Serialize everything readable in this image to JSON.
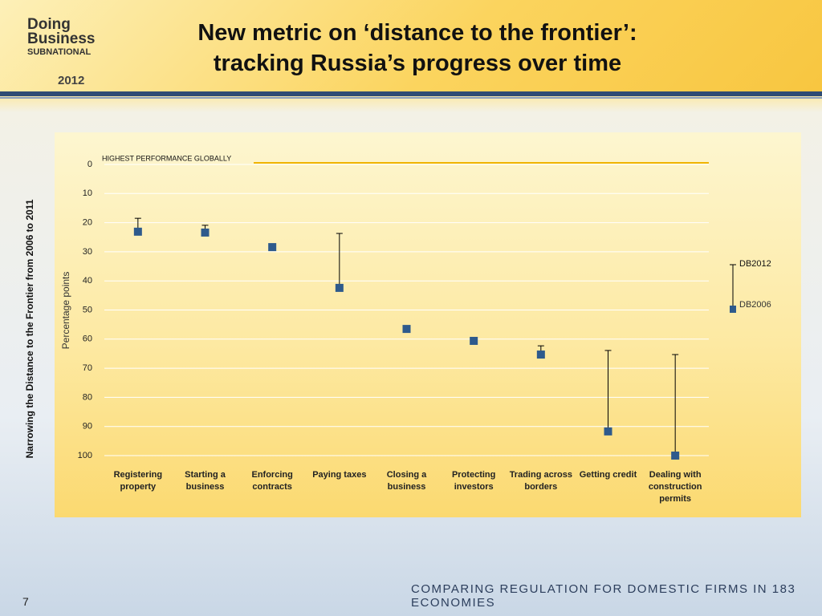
{
  "header": {
    "logo": [
      "Doing",
      "Business",
      "SUBNATIONAL",
      "2012"
    ],
    "title": [
      "New metric on ‘distance to the frontier’:",
      "tracking Russia’s progress over time"
    ]
  },
  "chart_data": {
    "type": "range",
    "y_label": "Percentage points",
    "outer_label": "Narrowing the Distance to the Frontier from 2006 to 2011",
    "annotation": "HIGHEST PERFORMANCE GLOBALLY",
    "annotation_color": "#f0b400",
    "categories": [
      "Registering property",
      "Starting a business",
      "Enforcing contracts",
      "Paying taxes",
      "Closing a business",
      "Protecting investors",
      "Trading across borders",
      "Getting credit",
      "Dealing with construction permits"
    ],
    "series": [
      {
        "name": "DB2012",
        "color": "#000000",
        "values": [
          18.5,
          20.9,
          28.4,
          23.7,
          56.5,
          60.6,
          62.3,
          63.9,
          65.3
        ]
      },
      {
        "name": "DB2006",
        "color": "#2e5a8c",
        "values": [
          23.1,
          23.4,
          28.4,
          42.4,
          56.5,
          60.6,
          65.3,
          91.7,
          100
        ]
      }
    ],
    "ylim": [
      0,
      100
    ],
    "inverted": true,
    "yticks": [
      0,
      10,
      20,
      30,
      40,
      50,
      60,
      70,
      80,
      90,
      100
    ],
    "grid": true
  },
  "footer": {
    "tagline": "COMPARING REGULATION FOR DOMESTIC FIRMS IN 183 ECONOMIES",
    "page": "7"
  }
}
